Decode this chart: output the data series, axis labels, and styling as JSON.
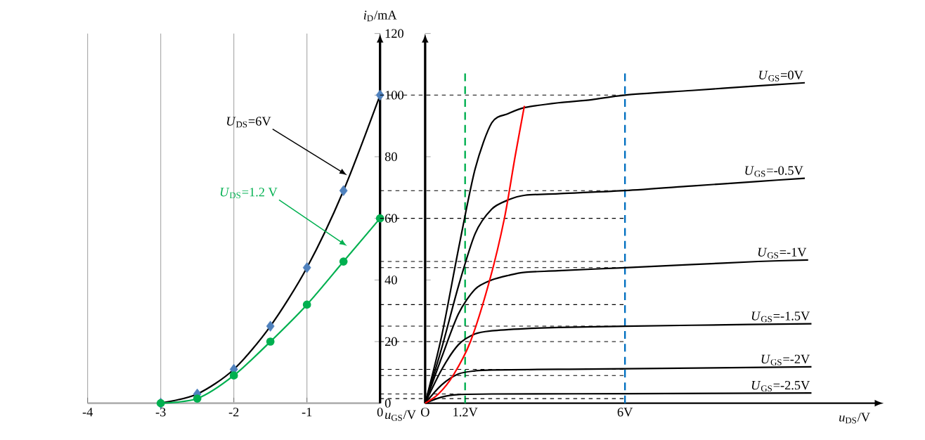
{
  "chart_data": [
    {
      "type": "line",
      "xlabel": "*u*$_{GS}$/V",
      "ylabel": "*i*$_{D}$/mA",
      "xlim": [
        -4,
        0
      ],
      "ylim": [
        0,
        120
      ],
      "xticks": [
        -4,
        -3,
        -2,
        -1,
        0
      ],
      "yticks": [
        0,
        20,
        40,
        60,
        80,
        100,
        120
      ],
      "grid": "x",
      "series": [
        {
          "type": "line",
          "name": "*U*$_{DS}$=6V",
          "color": "#000000",
          "x": [
            -3,
            -2.5,
            -2,
            -1.5,
            -1,
            -0.5,
            0
          ],
          "values": [
            0,
            3,
            11,
            25,
            44,
            69,
            100
          ]
        },
        {
          "type": "scatter",
          "color": "#4f81bd",
          "marker": "diamond",
          "x": [
            -3,
            -2.5,
            -2,
            -1.5,
            -1,
            -0.5,
            0
          ],
          "values": [
            0,
            3,
            11,
            25,
            44,
            69,
            100
          ]
        },
        {
          "type": "line",
          "name": "*U*$_{DS}$=1.2 V",
          "color": "#00b050",
          "marker": "circle",
          "x": [
            -3,
            -2.5,
            -2,
            -1.5,
            -1,
            -0.5,
            0
          ],
          "values": [
            0,
            1.5,
            9,
            20,
            32,
            46,
            60
          ]
        }
      ]
    },
    {
      "type": "line",
      "xlabel": "*u*$_{DS}$/V",
      "xlim": [
        0,
        13.5
      ],
      "ylim": [
        0,
        120
      ],
      "xticks": [
        {
          "value": 0,
          "label": "O"
        },
        {
          "value": 1.2,
          "label": "1.2V"
        },
        {
          "value": 6,
          "label": "6V"
        }
      ],
      "yticks": [
        0,
        20,
        40,
        60,
        80,
        100,
        120
      ],
      "tick_labels": "x",
      "ref_lines": [
        {
          "axis": "x",
          "value": 1.2,
          "color": "#00b050",
          "line_style": "dashed"
        },
        {
          "axis": "x",
          "value": 6,
          "color": "#0070c0",
          "line_style": "dashed"
        },
        {
          "axis": "y",
          "value": 100,
          "color": "#000000",
          "line_style": "dashed"
        },
        {
          "axis": "y",
          "value": 69,
          "color": "#000000",
          "line_style": "dashed"
        },
        {
          "axis": "y",
          "value": 60,
          "color": "#000000",
          "line_style": "dashed"
        },
        {
          "axis": "y",
          "value": 46,
          "color": "#000000",
          "line_style": "dashed"
        },
        {
          "axis": "y",
          "value": 44,
          "color": "#000000",
          "line_style": "dashed"
        },
        {
          "axis": "y",
          "value": 32,
          "color": "#000000",
          "line_style": "dashed"
        },
        {
          "axis": "y",
          "value": 25,
          "color": "#000000",
          "line_style": "dashed"
        },
        {
          "axis": "y",
          "value": 20,
          "color": "#000000",
          "line_style": "dashed"
        },
        {
          "axis": "y",
          "value": 11,
          "color": "#000000",
          "line_style": "dashed"
        },
        {
          "axis": "y",
          "value": 9,
          "color": "#000000",
          "line_style": "dashed"
        },
        {
          "axis": "y",
          "value": 3,
          "color": "#000000",
          "line_style": "dashed"
        },
        {
          "axis": "y",
          "value": 1.5,
          "color": "#000000",
          "line_style": "dashed"
        }
      ],
      "series": [
        {
          "name": "*U*$_{GS}$=0V",
          "color": "#000000",
          "x": [
            0,
            0.5,
            1,
            1.5,
            2,
            2.5,
            3,
            4,
            5,
            6,
            8,
            10,
            11.4
          ],
          "values": [
            0,
            22,
            50,
            76,
            91,
            94,
            96,
            97.5,
            98.5,
            100,
            101.5,
            103,
            104
          ]
        },
        {
          "name": "*U*$_{GS}$=-0.5V",
          "color": "#000000",
          "x": [
            0,
            0.5,
            1,
            1.5,
            2,
            2.5,
            3,
            4,
            6,
            8,
            10,
            11.4
          ],
          "values": [
            0,
            18,
            38,
            55,
            63,
            66,
            67.5,
            68,
            69,
            70.5,
            72,
            73
          ]
        },
        {
          "name": "*U*$_{GS}$=-1V",
          "color": "#000000",
          "x": [
            0,
            0.5,
            1,
            1.5,
            2,
            2.5,
            3,
            4,
            6,
            8,
            10,
            11.5
          ],
          "values": [
            0,
            15,
            29,
            37,
            40,
            41.5,
            42.5,
            43,
            44,
            45,
            46,
            46.5
          ]
        },
        {
          "name": "*U*$_{GS}$=-1.5V",
          "color": "#000000",
          "x": [
            0,
            0.5,
            1,
            1.5,
            2,
            3,
            4,
            6,
            8,
            11.6
          ],
          "values": [
            0,
            11,
            19,
            22.5,
            23.5,
            24.2,
            24.6,
            25,
            25.3,
            25.8
          ]
        },
        {
          "name": "*U*$_{GS}$=-2V",
          "color": "#000000",
          "x": [
            0,
            0.5,
            1,
            1.5,
            2,
            4,
            6,
            11.6
          ],
          "values": [
            0,
            6,
            9.5,
            10.5,
            10.8,
            11,
            11.2,
            11.8
          ]
        },
        {
          "name": "*U*$_{GS}$=-2.5V",
          "color": "#000000",
          "x": [
            0,
            0.5,
            1,
            2,
            6,
            11.6
          ],
          "values": [
            0,
            2,
            2.8,
            3,
            3.1,
            3.3
          ]
        },
        {
          "color": "#ff0000",
          "x": [
            0,
            0.4,
            0.84,
            1.36,
            1.94,
            2.38,
            2.7,
            2.98
          ],
          "values": [
            0,
            3,
            9,
            20,
            40,
            60,
            80,
            96.5
          ]
        }
      ]
    }
  ]
}
